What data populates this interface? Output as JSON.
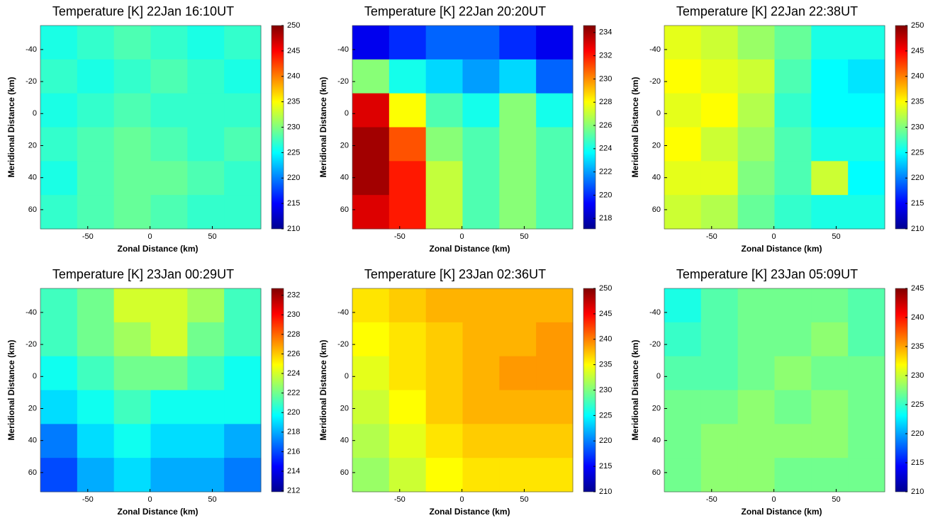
{
  "chart_data": [
    {
      "type": "heatmap",
      "title": "Temperature [K] 22Jan 16:10UT",
      "xlabel": "Zonal Distance (km)",
      "ylabel": "Meridional Distance (km)",
      "colormap": "jet",
      "xlim": [
        -88,
        89
      ],
      "xticks": [
        -50,
        0,
        50
      ],
      "ylim": [
        -55,
        72
      ],
      "yticks": [
        -40,
        -20,
        0,
        20,
        40,
        60
      ],
      "clim": [
        210,
        250
      ],
      "cticks": [
        210,
        215,
        220,
        225,
        230,
        235,
        240,
        245,
        250
      ],
      "z": [
        [
          226,
          227,
          228,
          227,
          226,
          227
        ],
        [
          227,
          226,
          227,
          228,
          227,
          226
        ],
        [
          226,
          227,
          228,
          227,
          227,
          227
        ],
        [
          227,
          228,
          229,
          228,
          227,
          228
        ],
        [
          226,
          228,
          229,
          229,
          228,
          227
        ],
        [
          227,
          228,
          229,
          228,
          227,
          227
        ]
      ]
    },
    {
      "type": "heatmap",
      "title": "Temperature [K] 22Jan 20:20UT",
      "xlabel": "Zonal Distance (km)",
      "ylabel": "Meridional Distance (km)",
      "colormap": "jet",
      "xlim": [
        -88,
        89
      ],
      "xticks": [
        -50,
        0,
        50
      ],
      "ylim": [
        -55,
        72
      ],
      "yticks": [
        -40,
        -20,
        0,
        20,
        40,
        60
      ],
      "clim": [
        217.1,
        234.6
      ],
      "cticks": [
        218,
        220,
        222,
        224,
        226,
        228,
        230,
        232,
        234
      ],
      "z": [
        [
          219,
          220,
          221,
          221,
          220,
          219
        ],
        [
          226,
          224,
          223,
          222,
          223,
          221
        ],
        [
          233,
          228,
          225,
          224,
          226,
          224
        ],
        [
          234,
          231,
          226,
          225,
          226,
          225
        ],
        [
          234,
          232,
          227,
          225,
          226,
          225
        ],
        [
          233,
          232,
          227,
          225,
          226,
          225
        ]
      ]
    },
    {
      "type": "heatmap",
      "title": "Temperature [K] 22Jan 22:38UT",
      "xlabel": "Zonal Distance (km)",
      "ylabel": "Meridional Distance (km)",
      "colormap": "jet",
      "xlim": [
        -88,
        89
      ],
      "xticks": [
        -50,
        0,
        50
      ],
      "ylim": [
        -55,
        72
      ],
      "yticks": [
        -40,
        -20,
        0,
        20,
        40,
        60
      ],
      "clim": [
        210,
        250
      ],
      "cticks": [
        210,
        215,
        220,
        225,
        230,
        235,
        240,
        245,
        250
      ],
      "z": [
        [
          234,
          233,
          231,
          229,
          226,
          226
        ],
        [
          235,
          234,
          233,
          228,
          225,
          224
        ],
        [
          234,
          235,
          232,
          227,
          225,
          225
        ],
        [
          235,
          233,
          231,
          228,
          226,
          226
        ],
        [
          234,
          234,
          230,
          228,
          233,
          225
        ],
        [
          233,
          232,
          229,
          227,
          226,
          226
        ]
      ]
    },
    {
      "type": "heatmap",
      "title": "Temperature [K] 23Jan 00:29UT",
      "xlabel": "Zonal Distance (km)",
      "ylabel": "Meridional Distance (km)",
      "colormap": "jet",
      "xlim": [
        -88,
        89
      ],
      "xticks": [
        -50,
        0,
        50
      ],
      "ylim": [
        -55,
        72
      ],
      "yticks": [
        -40,
        -20,
        0,
        20,
        40,
        60
      ],
      "clim": [
        211.9,
        232.7
      ],
      "cticks": [
        212,
        214,
        216,
        218,
        220,
        222,
        224,
        226,
        228,
        230,
        232
      ],
      "z": [
        [
          221,
          222,
          224,
          224,
          223,
          221
        ],
        [
          221,
          222,
          223,
          224,
          222,
          221
        ],
        [
          220,
          221,
          222,
          222,
          221,
          220
        ],
        [
          219,
          220,
          221,
          220,
          220,
          220
        ],
        [
          217,
          219,
          220,
          219,
          219,
          218
        ],
        [
          216,
          218,
          219,
          218,
          218,
          217
        ]
      ]
    },
    {
      "type": "heatmap",
      "title": "Temperature [K] 23Jan 02:36UT",
      "xlabel": "Zonal Distance (km)",
      "ylabel": "Meridional Distance (km)",
      "colormap": "jet",
      "xlim": [
        -88,
        89
      ],
      "xticks": [
        -50,
        0,
        50
      ],
      "ylim": [
        -55,
        72
      ],
      "yticks": [
        -40,
        -20,
        0,
        20,
        40,
        60
      ],
      "clim": [
        210,
        250
      ],
      "cticks": [
        210,
        215,
        220,
        225,
        230,
        235,
        240,
        245,
        250
      ],
      "z": [
        [
          236,
          237,
          238,
          238,
          238,
          238
        ],
        [
          235,
          236,
          237,
          238,
          238,
          239
        ],
        [
          234,
          236,
          237,
          238,
          239,
          239
        ],
        [
          233,
          235,
          237,
          238,
          238,
          238
        ],
        [
          232,
          234,
          236,
          237,
          237,
          237
        ],
        [
          231,
          233,
          235,
          236,
          236,
          236
        ]
      ]
    },
    {
      "type": "heatmap",
      "title": "Temperature [K] 23Jan 05:09UT",
      "xlabel": "Zonal Distance (km)",
      "ylabel": "Meridional Distance (km)",
      "colormap": "jet",
      "xlim": [
        -88,
        89
      ],
      "xticks": [
        -50,
        0,
        50
      ],
      "ylim": [
        -55,
        72
      ],
      "yticks": [
        -40,
        -20,
        0,
        20,
        40,
        60
      ],
      "clim": [
        210,
        245
      ],
      "cticks": [
        210,
        215,
        220,
        225,
        230,
        235,
        240,
        245
      ],
      "z": [
        [
          224,
          226,
          227,
          227,
          227,
          226
        ],
        [
          225,
          226,
          227,
          227,
          228,
          226
        ],
        [
          226,
          226,
          227,
          228,
          227,
          227
        ],
        [
          227,
          227,
          228,
          227,
          228,
          227
        ],
        [
          227,
          228,
          228,
          228,
          228,
          227
        ],
        [
          227,
          228,
          228,
          227,
          227,
          227
        ]
      ]
    }
  ]
}
